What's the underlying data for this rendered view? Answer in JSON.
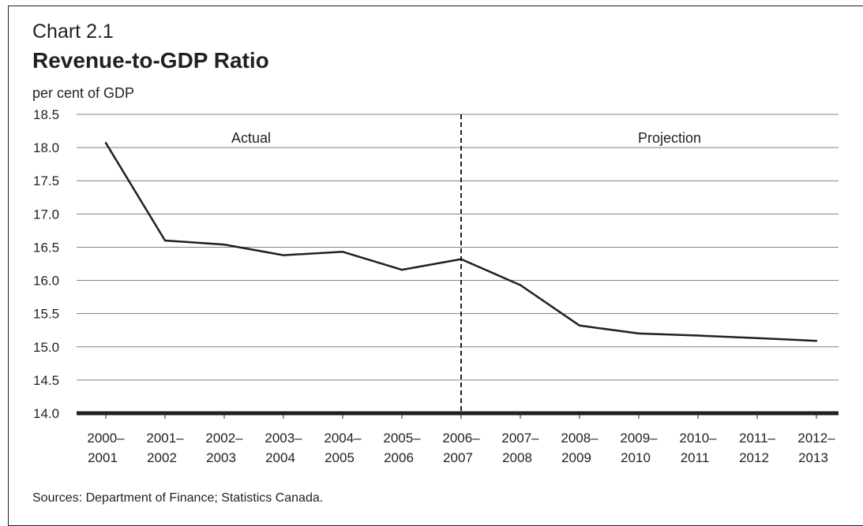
{
  "chart_number": "Chart 2.1",
  "chart_title": "Revenue-to-GDP Ratio",
  "source_note": "Sources: Department of Finance; Statistics Canada.",
  "colors": {
    "line": "#231f20",
    "grid": "#808080",
    "axis": "#231f20"
  },
  "chart_data": {
    "type": "line",
    "title": "Revenue-to-GDP Ratio",
    "ylabel": "per cent of GDP",
    "xlabel": "",
    "categories": [
      [
        "2000–",
        "2001"
      ],
      [
        "2001–",
        "2002"
      ],
      [
        "2002–",
        "2003"
      ],
      [
        "2003–",
        "2004"
      ],
      [
        "2004–",
        "2005"
      ],
      [
        "2005–",
        "2006"
      ],
      [
        "2006–",
        "2007"
      ],
      [
        "2007–",
        "2008"
      ],
      [
        "2008–",
        "2009"
      ],
      [
        "2009–",
        "2010"
      ],
      [
        "2010–",
        "2011"
      ],
      [
        "2011–",
        "2012"
      ],
      [
        "2012–",
        "2013"
      ]
    ],
    "series": [
      {
        "values": [
          18.07,
          16.6,
          16.54,
          16.38,
          16.43,
          16.16,
          16.32,
          15.93,
          15.32,
          15.2,
          15.17,
          15.13,
          15.09
        ]
      }
    ],
    "ylim": [
      14.0,
      18.5
    ],
    "y_ticks": [
      "14.0",
      "14.5",
      "15.0",
      "15.5",
      "16.0",
      "16.5",
      "17.0",
      "17.5",
      "18.0",
      "18.5"
    ],
    "grid": true,
    "divider": {
      "after_category_index": 6,
      "style": "dashed"
    },
    "annotations": [
      {
        "text": "Actual",
        "region": "actual"
      },
      {
        "text": "Projection",
        "region": "projection"
      }
    ]
  }
}
